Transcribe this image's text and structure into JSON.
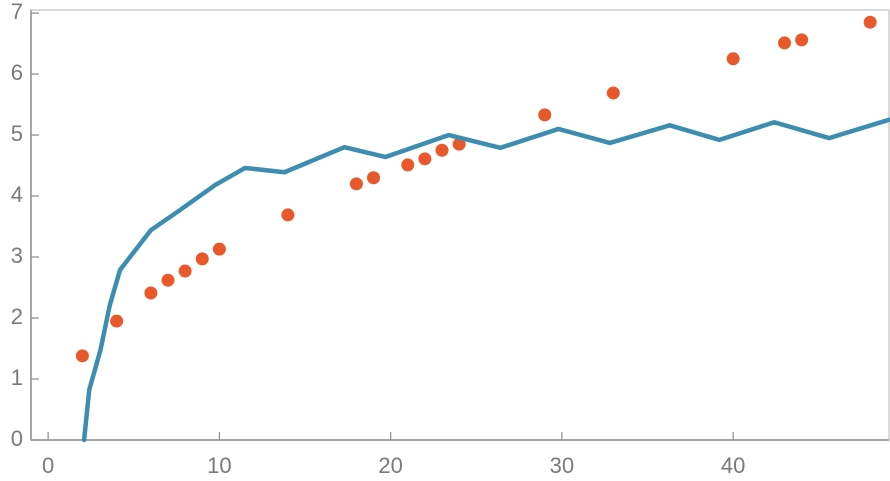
{
  "chart_data": {
    "type": "scatter",
    "xlim": [
      -1,
      49.1
    ],
    "ylim": [
      0,
      7.05
    ],
    "xticks": [
      0,
      10,
      20,
      30,
      40
    ],
    "yticks": [
      0,
      1,
      2,
      3,
      4,
      5,
      6,
      7
    ],
    "grid": false,
    "frame": true,
    "series": [
      {
        "type": "scatter",
        "color": "#e8582a",
        "x": [
          2,
          4,
          6,
          7,
          8,
          9,
          10,
          14,
          18,
          19,
          21,
          22,
          23,
          24,
          29,
          33,
          40,
          43,
          44,
          48
        ],
        "values": [
          1.38,
          1.95,
          2.41,
          2.62,
          2.77,
          2.97,
          3.13,
          3.69,
          4.2,
          4.3,
          4.51,
          4.61,
          4.75,
          4.85,
          5.33,
          5.69,
          6.25,
          6.51,
          6.56,
          6.85
        ]
      },
      {
        "type": "line",
        "color": "#3d8db0",
        "x": [
          2.1,
          2.4,
          3.06,
          3.6,
          4.2,
          6,
          7.7,
          9.75,
          11.5,
          13.8,
          17.3,
          19.7,
          23.4,
          26.4,
          29.8,
          32.8,
          36.3,
          39.2,
          42.4,
          45.6,
          49.1
        ],
        "values": [
          0,
          0.82,
          1.48,
          2.21,
          2.79,
          3.44,
          3.77,
          4.18,
          4.46,
          4.39,
          4.8,
          4.64,
          5.0,
          4.79,
          5.1,
          4.87,
          5.16,
          4.92,
          5.21,
          4.95,
          5.25
        ]
      }
    ]
  }
}
